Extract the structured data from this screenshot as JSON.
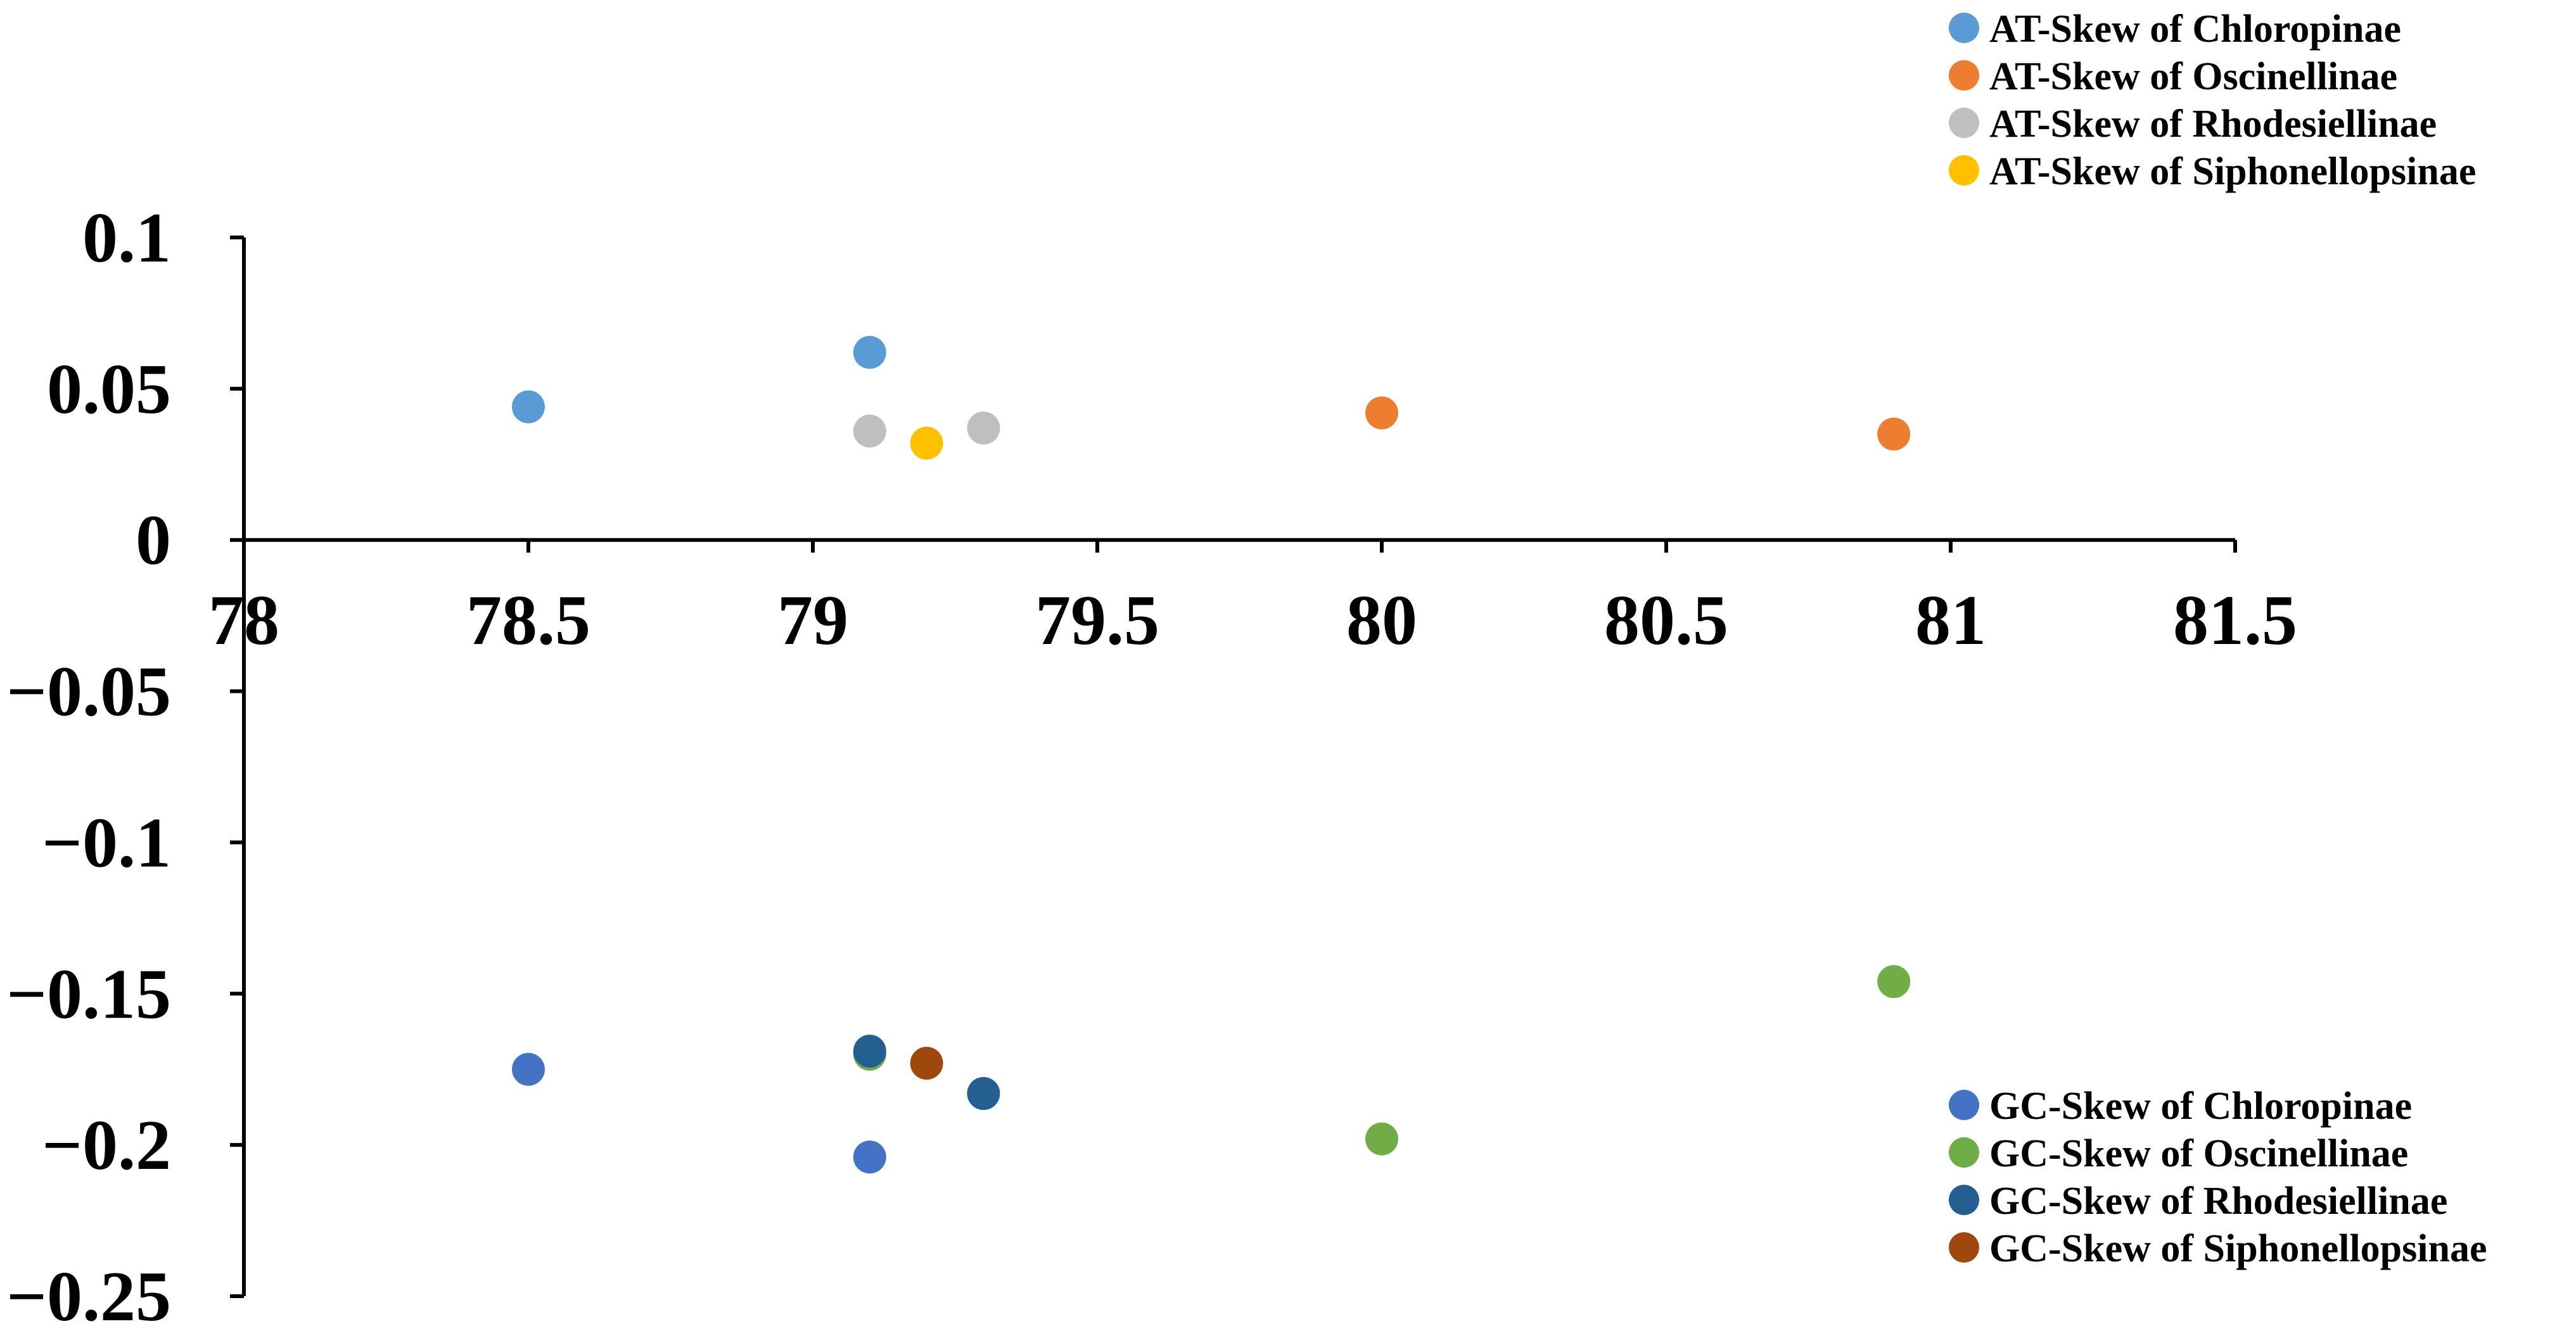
{
  "chart_data": {
    "type": "scatter",
    "title": "",
    "xlabel": "",
    "ylabel": "",
    "xlim": [
      78,
      81.5
    ],
    "ylim": [
      -0.25,
      0.1
    ],
    "x_ticks": [
      "78",
      "78.5",
      "79",
      "79.5",
      "80",
      "80.5",
      "81",
      "81.5"
    ],
    "y_ticks": [
      "0.1",
      "0.05",
      "0",
      "−0.05",
      "−0.1",
      "−0.15",
      "−0.2",
      "−0.25"
    ],
    "grid": false,
    "series": [
      {
        "name": "AT-Skew of Chloropinae",
        "color": "#5B9BD5",
        "legend": "top-right",
        "points": [
          {
            "x": 78.5,
            "y": 0.044
          },
          {
            "x": 79.1,
            "y": 0.062
          }
        ]
      },
      {
        "name": "AT-Skew of Oscinellinae",
        "color": "#ED7D31",
        "legend": "top-right",
        "points": [
          {
            "x": 80.0,
            "y": 0.042
          },
          {
            "x": 80.9,
            "y": 0.035
          }
        ]
      },
      {
        "name": "AT-Skew of Rhodesiellinae",
        "color": "#BFBFBF",
        "legend": "top-right",
        "points": [
          {
            "x": 79.1,
            "y": 0.036
          },
          {
            "x": 79.3,
            "y": 0.037
          }
        ]
      },
      {
        "name": "AT-Skew of Siphonellopsinae",
        "color": "#FFC000",
        "legend": "top-right",
        "points": [
          {
            "x": 79.2,
            "y": 0.032
          }
        ]
      },
      {
        "name": "GC-Skew of Chloropinae",
        "color": "#4472C4",
        "legend": "bottom-right",
        "points": [
          {
            "x": 78.5,
            "y": -0.175
          },
          {
            "x": 79.1,
            "y": -0.204
          }
        ]
      },
      {
        "name": "GC-Skew of Oscinellinae",
        "color": "#70AD47",
        "legend": "bottom-right",
        "points": [
          {
            "x": 79.1,
            "y": -0.17
          },
          {
            "x": 80.0,
            "y": -0.198
          },
          {
            "x": 80.9,
            "y": -0.146
          }
        ]
      },
      {
        "name": "GC-Skew of Rhodesiellinae",
        "color": "#255E91",
        "legend": "bottom-right",
        "points": [
          {
            "x": 79.1,
            "y": -0.169
          },
          {
            "x": 79.3,
            "y": -0.183
          }
        ]
      },
      {
        "name": "GC-Skew of Siphonellopsinae",
        "color": "#9E480E",
        "legend": "bottom-right",
        "points": [
          {
            "x": 79.2,
            "y": -0.173
          }
        ]
      }
    ]
  }
}
